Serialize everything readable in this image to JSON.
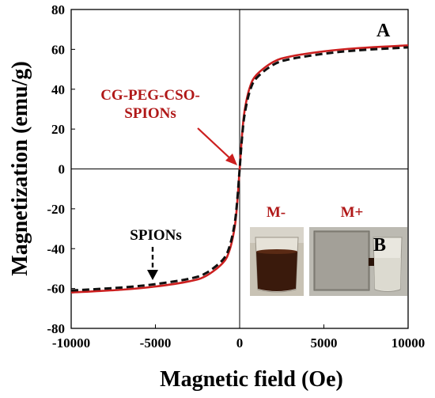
{
  "chart_data": {
    "type": "line",
    "title": "",
    "xlabel": "Magnetic field (Oe)",
    "ylabel": "Magnetization (emu/g)",
    "xlim": [
      -10000,
      10000
    ],
    "ylim": [
      -80,
      80
    ],
    "x_ticks": [
      "-10000",
      "-5000",
      "0",
      "5000",
      "10000"
    ],
    "y_ticks": [
      "80",
      "60",
      "40",
      "20",
      "0",
      "-20",
      "-40",
      "-60",
      "-80"
    ],
    "series": [
      {
        "name": "CG-PEG-CSO-SPIONs",
        "style": "solid",
        "color": "#cc1f1f",
        "x": [
          -10000,
          -7000,
          -5000,
          -3000,
          -2000,
          -1000,
          -600,
          -300,
          -150,
          0,
          150,
          300,
          600,
          1000,
          2000,
          3000,
          5000,
          7000,
          10000
        ],
        "y": [
          -62,
          -60.6,
          -59,
          -56.4,
          -53.7,
          -47.2,
          -40.8,
          -29.5,
          -17.8,
          0,
          17.8,
          29.5,
          40.8,
          47.2,
          53.7,
          56.4,
          59,
          60.6,
          62
        ]
      },
      {
        "name": "SPIONs",
        "style": "dashed",
        "color": "#111111",
        "x": [
          -10000,
          -7000,
          -5000,
          -3000,
          -2000,
          -1000,
          -600,
          -300,
          -150,
          0,
          150,
          300,
          600,
          1000,
          2000,
          3000,
          5000,
          7000,
          10000
        ],
        "y": [
          -61,
          -59.5,
          -57.8,
          -55.1,
          -52.3,
          -45.6,
          -38.9,
          -27.6,
          -16.4,
          0,
          16.4,
          27.6,
          38.9,
          45.6,
          52.3,
          55.1,
          57.8,
          59.5,
          61
        ]
      }
    ],
    "annotations": {
      "panel_a": "A",
      "panel_b": "B",
      "red_label_line1": "CG-PEG-CSO-",
      "red_label_line2": "SPIONs",
      "black_label": "SPIONs",
      "inset_left_label": "M-",
      "inset_right_label": "M+"
    },
    "colors": {
      "red": "#cc1f1f",
      "red_text": "#b01818",
      "black": "#111111"
    }
  }
}
